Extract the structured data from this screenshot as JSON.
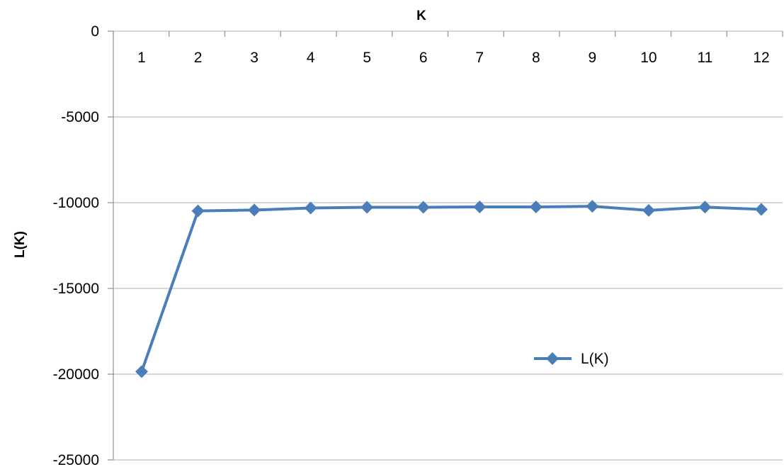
{
  "chart_data": {
    "type": "line",
    "title": "",
    "xlabel": "K",
    "ylabel": "L(K)",
    "x_axis_position": "top",
    "categories": [
      "1",
      "2",
      "3",
      "4",
      "5",
      "6",
      "7",
      "8",
      "9",
      "10",
      "11",
      "12"
    ],
    "series": [
      {
        "name": "L(K)",
        "values": [
          -19850,
          -10480,
          -10430,
          -10310,
          -10270,
          -10270,
          -10250,
          -10250,
          -10210,
          -10450,
          -10260,
          -10390
        ]
      }
    ],
    "ylim": [
      -25000,
      0
    ],
    "yticks": [
      0,
      -5000,
      -10000,
      -15000,
      -20000,
      -25000
    ],
    "ytick_labels": [
      "0",
      "-5000",
      "-10000",
      "-15000",
      "-20000",
      "-25000"
    ],
    "grid": "horizontal",
    "legend": "inside-lower-right",
    "colors": {
      "series": "#4a7ebb",
      "grid": "#bfbfbf",
      "axis": "#999999"
    }
  }
}
